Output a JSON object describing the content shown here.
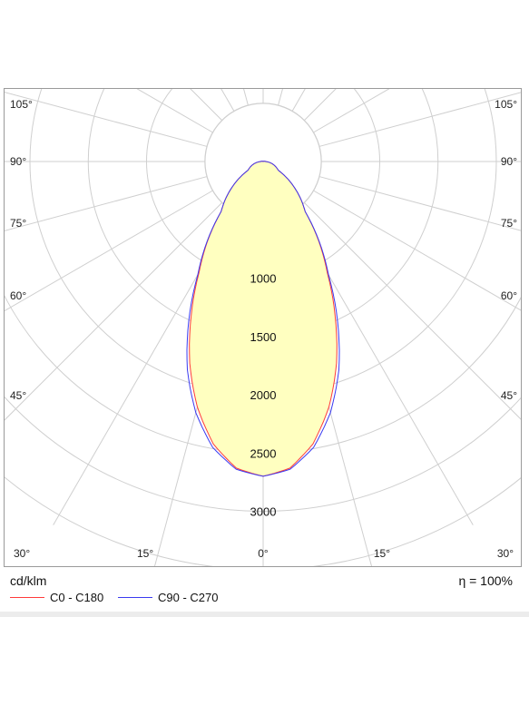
{
  "chart_data": {
    "type": "polar",
    "unit": "cd/klm",
    "efficiency_label": "η = 100%",
    "radial_ticks": [
      1000,
      1500,
      2000,
      2500,
      3000
    ],
    "rmax": 3500,
    "angle_labels_left": [
      "105°",
      "90°",
      "75°",
      "60°",
      "45°",
      "30°",
      "15°"
    ],
    "angle_labels_right": [
      "105°",
      "90°",
      "75°",
      "60°",
      "45°",
      "30°",
      "15°"
    ],
    "angle_label_center": "0°",
    "series": [
      {
        "name": "C0 - C180",
        "color": "#ff3b3b",
        "angles": [
          0,
          5,
          10,
          15,
          20,
          25,
          30,
          40,
          60,
          90,
          120,
          150,
          180
        ],
        "values": [
          2700,
          2640,
          2460,
          2180,
          1840,
          1460,
          1100,
          560,
          150,
          20,
          0,
          0,
          0
        ]
      },
      {
        "name": "C90 - C270",
        "color": "#3a3af0",
        "angles": [
          0,
          5,
          10,
          15,
          20,
          25,
          30,
          40,
          60,
          90,
          120,
          150,
          180
        ],
        "values": [
          2700,
          2650,
          2490,
          2230,
          1900,
          1510,
          1120,
          560,
          150,
          20,
          0,
          0,
          0
        ]
      }
    ],
    "fill_color": "#ffffc0"
  }
}
